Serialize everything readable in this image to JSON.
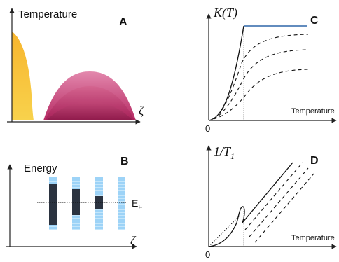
{
  "panels": {
    "A": {
      "letter": "A",
      "y_label": "Temperature",
      "x_label": "ζ"
    },
    "B": {
      "letter": "B",
      "y_label": "Energy",
      "x_label": "ζ",
      "fermi_label_main": "E",
      "fermi_label_sub": "F"
    },
    "C": {
      "letter": "C",
      "y_label_main": "K(T)",
      "x_label": "Temperature",
      "origin_label": "0"
    },
    "D": {
      "letter": "D",
      "y_label_main": "1/T",
      "y_label_sub": "1",
      "x_label": "Temperature",
      "origin_label": "0"
    }
  },
  "colors": {
    "yellow": "#F2C230",
    "magenta_dark": "#9A1F55",
    "magenta_mid": "#C23A73",
    "magenta_light": "#E07BA4",
    "band_light_blue": "#9DD3F7",
    "band_dark": "#2B3340",
    "saturation_line": "#2F66A8",
    "axis": "#222222"
  }
}
